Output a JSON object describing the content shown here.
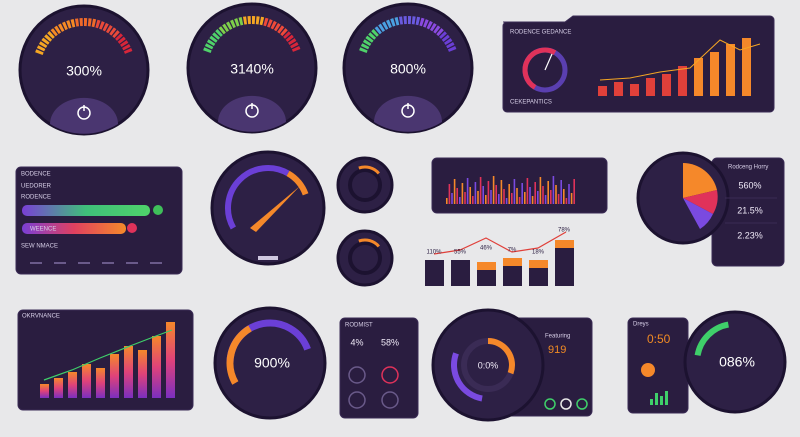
{
  "gauges_top": [
    "300%",
    "3140%",
    "800%"
  ],
  "revenue_panel": {
    "title": "RODENCE GEDANCE",
    "footer": "CEKEPANTICS"
  },
  "progress_panel": {
    "title": "BODENCE",
    "subtitle": "UEDORER",
    "section": "RODENCE",
    "bar_label": "WEENCE",
    "footer": "SEW NMACE"
  },
  "bar_labels": [
    "110%",
    "55%",
    "46%",
    "7%",
    "18%",
    "78%"
  ],
  "pie_panel": {
    "title": "Rodceng Horry",
    "items": [
      "560%",
      "21.5%",
      "2.23%"
    ]
  },
  "performance_panel": {
    "title": "OKRVNANCE"
  },
  "gauge_bottom": "900%",
  "mini_panel": {
    "title": "RODMIST",
    "left": "4%",
    "right": "58%"
  },
  "feature_panel": {
    "title": "Featuring",
    "value": "919",
    "center": "0:0%"
  },
  "clock_panel": {
    "title": "Dreys",
    "time": "0:50",
    "gauge": "086%"
  }
}
